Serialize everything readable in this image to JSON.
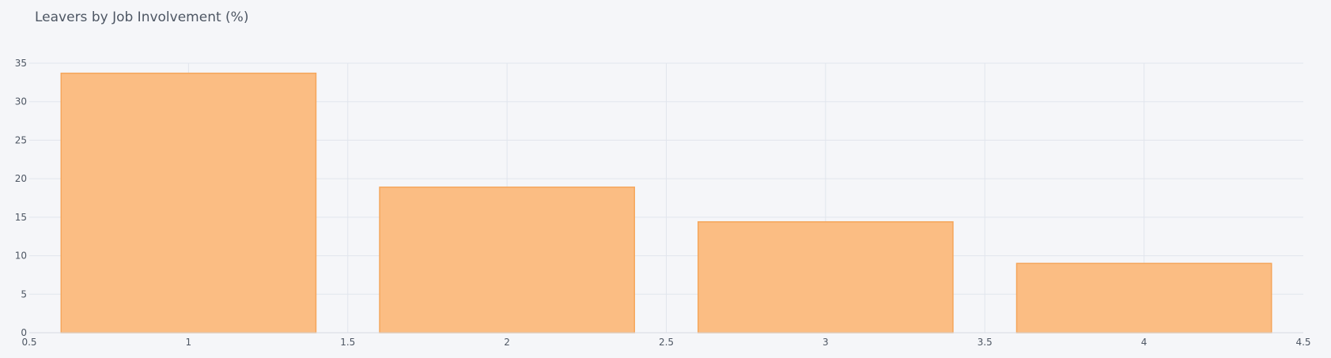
{
  "chart_data": {
    "type": "bar",
    "title": "Leavers by Job Involvement (%)",
    "xlabel": "",
    "ylabel": "",
    "x": [
      1,
      2,
      3,
      4
    ],
    "values": [
      33.7,
      18.9,
      14.4,
      9.0
    ],
    "bar_width": 0.8,
    "xlim": [
      0.5,
      4.5
    ],
    "ylim": [
      0,
      35
    ],
    "xticks": [
      0.5,
      1,
      1.5,
      2,
      2.5,
      3,
      3.5,
      4,
      4.5
    ],
    "xtick_labels": [
      "0.5",
      "1",
      "1.5",
      "2",
      "2.5",
      "3",
      "3.5",
      "4",
      "4.5"
    ],
    "yticks": [
      0,
      5,
      10,
      15,
      20,
      25,
      30,
      35
    ],
    "ytick_labels": [
      "0",
      "5",
      "10",
      "15",
      "20",
      "25",
      "30",
      "35"
    ],
    "grid": true,
    "legend": "none",
    "colors": {
      "bar_fill": "#fbbd83",
      "bar_stroke": "#f5a65b",
      "background": "#f5f6f9",
      "grid": "#e1e5ed",
      "text": "#4d5663"
    }
  }
}
